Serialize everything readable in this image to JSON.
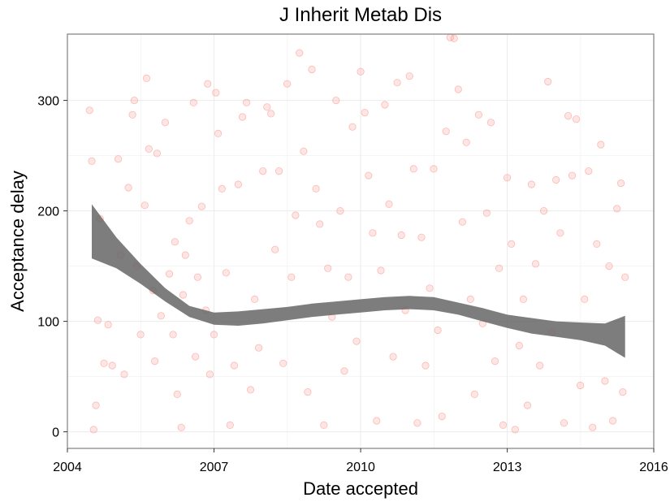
{
  "chart_data": {
    "type": "scatter",
    "title": "J Inherit Metab Dis",
    "xlabel": "Date accepted",
    "ylabel": "Acceptance delay",
    "xlim": [
      "2004-01-01",
      "2016-01-01"
    ],
    "ylim": [
      -15,
      360
    ],
    "x_ticks": [
      "2004",
      "2007",
      "2010",
      "2013",
      "2016"
    ],
    "x_tick_dates": [
      "2004-01-01",
      "2007-01-01",
      "2010-01-01",
      "2013-01-01",
      "2016-01-01"
    ],
    "y_ticks": [
      0,
      100,
      200,
      300
    ],
    "grid": true,
    "point_color": "#f8766d",
    "band_color": "#666666",
    "smooth": {
      "x": [
        "2004-07-01",
        "2005-01-01",
        "2005-07-01",
        "2006-01-01",
        "2006-07-01",
        "2007-01-01",
        "2007-07-01",
        "2008-01-01",
        "2008-07-01",
        "2009-01-01",
        "2009-07-01",
        "2010-01-01",
        "2010-07-01",
        "2011-01-01",
        "2011-07-01",
        "2012-01-01",
        "2012-07-01",
        "2013-01-01",
        "2013-07-01",
        "2014-01-01",
        "2014-07-01",
        "2015-01-01",
        "2015-06-01"
      ],
      "lower": [
        157,
        148,
        134,
        118,
        104,
        97,
        96,
        98,
        101,
        104,
        106,
        108,
        110,
        111,
        110,
        106,
        100,
        94,
        89,
        86,
        83,
        78,
        67
      ],
      "upper": [
        206,
        176,
        152,
        130,
        114,
        108,
        109,
        111,
        113,
        116,
        118,
        120,
        122,
        123,
        122,
        117,
        112,
        106,
        103,
        100,
        99,
        98,
        105
      ]
    },
    "points": [
      {
        "x": "2004-06-15",
        "y": 291
      },
      {
        "x": "2004-07-01",
        "y": 245
      },
      {
        "x": "2004-08-01",
        "y": 24
      },
      {
        "x": "2004-07-15",
        "y": 2
      },
      {
        "x": "2004-09-01",
        "y": 193
      },
      {
        "x": "2004-10-01",
        "y": 62
      },
      {
        "x": "2004-08-15",
        "y": 101
      },
      {
        "x": "2004-11-01",
        "y": 97
      },
      {
        "x": "2004-12-01",
        "y": 60
      },
      {
        "x": "2005-01-15",
        "y": 247
      },
      {
        "x": "2005-02-01",
        "y": 160
      },
      {
        "x": "2005-03-01",
        "y": 52
      },
      {
        "x": "2005-04-01",
        "y": 221
      },
      {
        "x": "2005-05-01",
        "y": 287
      },
      {
        "x": "2005-05-15",
        "y": 300
      },
      {
        "x": "2005-06-01",
        "y": 150
      },
      {
        "x": "2005-07-01",
        "y": 88
      },
      {
        "x": "2005-08-01",
        "y": 205
      },
      {
        "x": "2005-08-15",
        "y": 320
      },
      {
        "x": "2005-09-01",
        "y": 256
      },
      {
        "x": "2005-10-01",
        "y": 128
      },
      {
        "x": "2005-10-15",
        "y": 64
      },
      {
        "x": "2005-11-01",
        "y": 252
      },
      {
        "x": "2005-12-01",
        "y": 105
      },
      {
        "x": "2006-01-01",
        "y": 280
      },
      {
        "x": "2006-02-01",
        "y": 143
      },
      {
        "x": "2006-03-01",
        "y": 88
      },
      {
        "x": "2006-03-15",
        "y": 172
      },
      {
        "x": "2006-04-01",
        "y": 34
      },
      {
        "x": "2006-05-01",
        "y": 4
      },
      {
        "x": "2006-05-15",
        "y": 124
      },
      {
        "x": "2006-06-01",
        "y": 160
      },
      {
        "x": "2006-07-01",
        "y": 191
      },
      {
        "x": "2006-08-01",
        "y": 298
      },
      {
        "x": "2006-08-15",
        "y": 68
      },
      {
        "x": "2006-09-01",
        "y": 140
      },
      {
        "x": "2006-10-01",
        "y": 204
      },
      {
        "x": "2006-11-01",
        "y": 110
      },
      {
        "x": "2006-11-15",
        "y": 315
      },
      {
        "x": "2006-12-01",
        "y": 52
      },
      {
        "x": "2007-01-01",
        "y": 88
      },
      {
        "x": "2007-01-15",
        "y": 307
      },
      {
        "x": "2007-02-01",
        "y": 270
      },
      {
        "x": "2007-03-01",
        "y": 220
      },
      {
        "x": "2007-04-01",
        "y": 144
      },
      {
        "x": "2007-05-01",
        "y": 6
      },
      {
        "x": "2007-06-01",
        "y": 60
      },
      {
        "x": "2007-07-01",
        "y": 224
      },
      {
        "x": "2007-08-01",
        "y": 285
      },
      {
        "x": "2007-09-01",
        "y": 298
      },
      {
        "x": "2007-10-01",
        "y": 38
      },
      {
        "x": "2007-11-01",
        "y": 120
      },
      {
        "x": "2007-12-01",
        "y": 76
      },
      {
        "x": "2008-01-01",
        "y": 236
      },
      {
        "x": "2008-02-01",
        "y": 294
      },
      {
        "x": "2008-03-01",
        "y": 288
      },
      {
        "x": "2008-04-01",
        "y": 165
      },
      {
        "x": "2008-05-01",
        "y": 236
      },
      {
        "x": "2008-06-01",
        "y": 62
      },
      {
        "x": "2008-07-01",
        "y": 315
      },
      {
        "x": "2008-08-01",
        "y": 140
      },
      {
        "x": "2008-09-01",
        "y": 196
      },
      {
        "x": "2008-10-01",
        "y": 343
      },
      {
        "x": "2008-11-01",
        "y": 254
      },
      {
        "x": "2008-12-01",
        "y": 36
      },
      {
        "x": "2009-01-01",
        "y": 328
      },
      {
        "x": "2009-02-01",
        "y": 220
      },
      {
        "x": "2009-03-01",
        "y": 188
      },
      {
        "x": "2009-04-01",
        "y": 6
      },
      {
        "x": "2009-05-01",
        "y": 148
      },
      {
        "x": "2009-06-01",
        "y": 104
      },
      {
        "x": "2009-07-01",
        "y": 300
      },
      {
        "x": "2009-08-01",
        "y": 200
      },
      {
        "x": "2009-09-01",
        "y": 55
      },
      {
        "x": "2009-10-01",
        "y": 140
      },
      {
        "x": "2009-11-01",
        "y": 276
      },
      {
        "x": "2009-12-01",
        "y": 82
      },
      {
        "x": "2010-01-01",
        "y": 326
      },
      {
        "x": "2010-02-01",
        "y": 289
      },
      {
        "x": "2010-03-01",
        "y": 232
      },
      {
        "x": "2010-04-01",
        "y": 180
      },
      {
        "x": "2010-05-01",
        "y": 10
      },
      {
        "x": "2010-06-01",
        "y": 146
      },
      {
        "x": "2010-07-01",
        "y": 296
      },
      {
        "x": "2010-08-01",
        "y": 206
      },
      {
        "x": "2010-09-01",
        "y": 68
      },
      {
        "x": "2010-10-01",
        "y": 316
      },
      {
        "x": "2010-11-01",
        "y": 178
      },
      {
        "x": "2010-12-01",
        "y": 110
      },
      {
        "x": "2011-01-01",
        "y": 322
      },
      {
        "x": "2011-02-01",
        "y": 238
      },
      {
        "x": "2011-03-01",
        "y": 8
      },
      {
        "x": "2011-04-01",
        "y": 176
      },
      {
        "x": "2011-05-01",
        "y": 60
      },
      {
        "x": "2011-06-01",
        "y": 130
      },
      {
        "x": "2011-07-01",
        "y": 238
      },
      {
        "x": "2011-08-01",
        "y": 92
      },
      {
        "x": "2011-09-01",
        "y": 14
      },
      {
        "x": "2011-10-01",
        "y": 272
      },
      {
        "x": "2011-11-01",
        "y": 357
      },
      {
        "x": "2011-12-01",
        "y": 356
      },
      {
        "x": "2012-01-01",
        "y": 310
      },
      {
        "x": "2012-02-01",
        "y": 190
      },
      {
        "x": "2012-03-01",
        "y": 262
      },
      {
        "x": "2012-04-01",
        "y": 120
      },
      {
        "x": "2012-05-01",
        "y": 34
      },
      {
        "x": "2012-06-01",
        "y": 287
      },
      {
        "x": "2012-07-01",
        "y": 98
      },
      {
        "x": "2012-08-01",
        "y": 198
      },
      {
        "x": "2012-09-01",
        "y": 280
      },
      {
        "x": "2012-10-01",
        "y": 64
      },
      {
        "x": "2012-11-01",
        "y": 148
      },
      {
        "x": "2012-12-01",
        "y": 6
      },
      {
        "x": "2013-01-01",
        "y": 230
      },
      {
        "x": "2013-02-01",
        "y": 170
      },
      {
        "x": "2013-03-01",
        "y": 2
      },
      {
        "x": "2013-04-01",
        "y": 78
      },
      {
        "x": "2013-05-01",
        "y": 120
      },
      {
        "x": "2013-06-01",
        "y": 24
      },
      {
        "x": "2013-07-01",
        "y": 224
      },
      {
        "x": "2013-08-01",
        "y": 152
      },
      {
        "x": "2013-09-01",
        "y": 60
      },
      {
        "x": "2013-10-01",
        "y": 200
      },
      {
        "x": "2013-11-01",
        "y": 317
      },
      {
        "x": "2013-12-01",
        "y": 90
      },
      {
        "x": "2014-01-01",
        "y": 228
      },
      {
        "x": "2014-02-01",
        "y": 180
      },
      {
        "x": "2014-03-01",
        "y": 8
      },
      {
        "x": "2014-04-01",
        "y": 286
      },
      {
        "x": "2014-05-01",
        "y": 232
      },
      {
        "x": "2014-06-01",
        "y": 283
      },
      {
        "x": "2014-07-01",
        "y": 42
      },
      {
        "x": "2014-08-01",
        "y": 120
      },
      {
        "x": "2014-09-01",
        "y": 236
      },
      {
        "x": "2014-10-01",
        "y": 4
      },
      {
        "x": "2014-11-01",
        "y": 170
      },
      {
        "x": "2014-12-01",
        "y": 260
      },
      {
        "x": "2015-01-01",
        "y": 46
      },
      {
        "x": "2015-02-01",
        "y": 150
      },
      {
        "x": "2015-03-01",
        "y": 10
      },
      {
        "x": "2015-04-01",
        "y": 202
      },
      {
        "x": "2015-05-01",
        "y": 225
      },
      {
        "x": "2015-05-15",
        "y": 36
      },
      {
        "x": "2015-06-01",
        "y": 140
      }
    ]
  }
}
